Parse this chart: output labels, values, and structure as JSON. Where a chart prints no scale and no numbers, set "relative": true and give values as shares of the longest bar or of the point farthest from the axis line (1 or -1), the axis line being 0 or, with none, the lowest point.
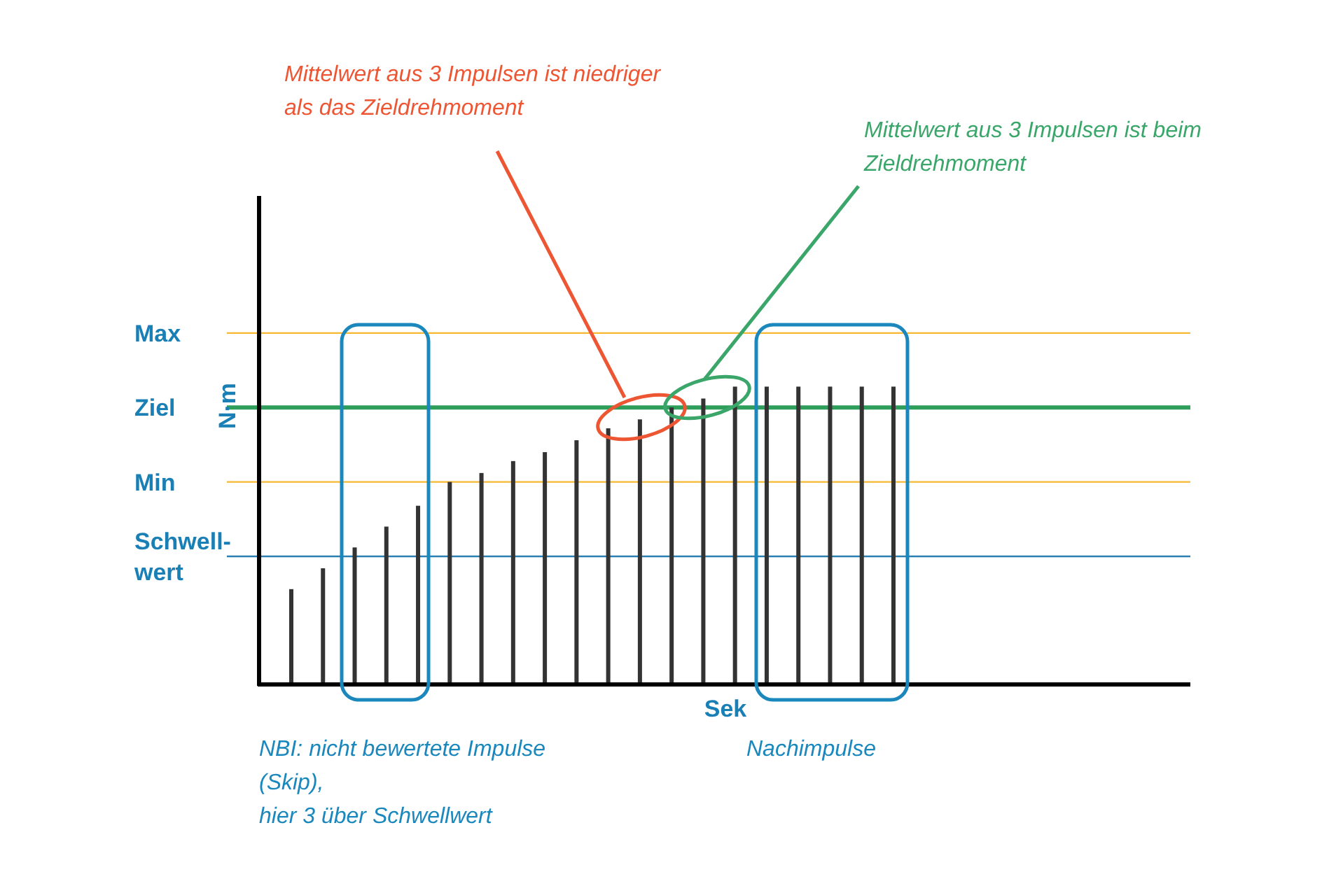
{
  "chart_data": {
    "type": "bar",
    "relative": true,
    "ylabel": "N·m",
    "xlabel": "Sek",
    "categories": [
      null,
      null,
      null,
      null,
      null,
      null,
      null,
      null,
      null,
      null,
      null,
      null,
      null,
      null,
      null,
      null,
      null,
      null,
      null,
      null
    ],
    "values": [
      0.32,
      0.39,
      0.46,
      0.53,
      0.6,
      0.68,
      0.71,
      0.75,
      0.78,
      0.82,
      0.86,
      0.89,
      0.93,
      0.96,
      1,
      1,
      1,
      1,
      1,
      1
    ],
    "color": "#333333",
    "ref_lines": [
      {
        "axis": "y",
        "value": 1.18,
        "label": "Max",
        "color": "#f7b733"
      },
      {
        "axis": "y",
        "value": 0.93,
        "label": "Ziel",
        "color": "#2e9e5b"
      },
      {
        "axis": "y",
        "value": 0.68,
        "label": "Min",
        "color": "#f7b733"
      },
      {
        "axis": "y",
        "value": 0.43,
        "label": "Schwell-\nwert",
        "color": "#2a7fb0"
      }
    ],
    "annotations": [
      "Mittelwert aus 3 Impulsen ist niedriger\nals das Zieldrehmoment",
      "Mittelwert aus 3 Impulsen ist beim\nZieldrehmoment",
      "NBI: nicht bewertete Impulse\n(Skip),\nhier 3 über Schwellwert",
      "Nachimpulse"
    ]
  }
}
